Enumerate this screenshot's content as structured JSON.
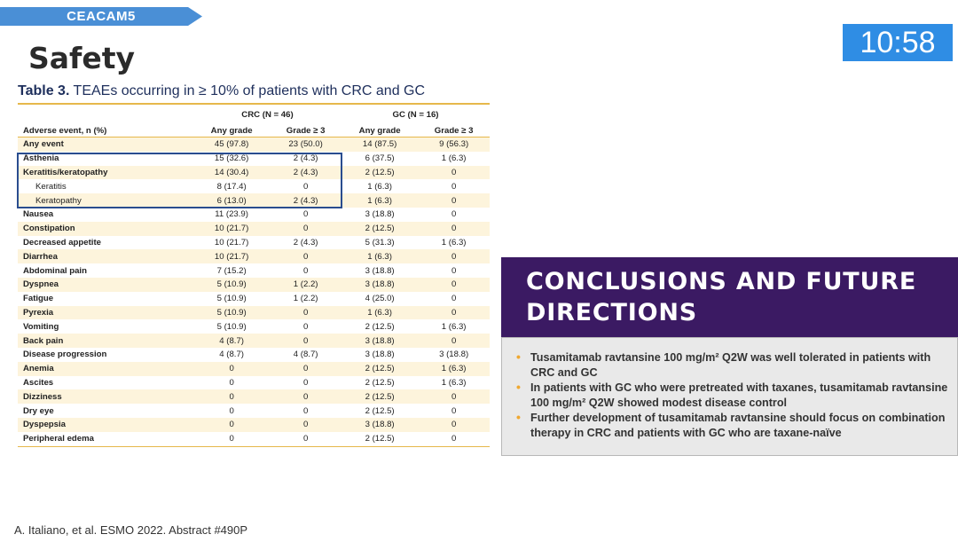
{
  "header": {
    "tag_label": "CEACAM5",
    "title": "Safety",
    "clock": "10:58"
  },
  "table": {
    "caption_bold": "Table 3.",
    "caption_rest": " TEAEs occurring in ≥ 10% of patients with CRC and GC",
    "group_crc": "CRC (N = 46)",
    "group_gc": "GC (N = 16)",
    "columns": [
      "Adverse event, n (%)",
      "Any grade",
      "Grade ≥ 3",
      "Any grade",
      "Grade ≥ 3"
    ],
    "rows": [
      [
        "Any event",
        "45 (97.8)",
        "23 (50.0)",
        "14 (87.5)",
        "9 (56.3)"
      ],
      [
        "Asthenia",
        "15 (32.6)",
        "2 (4.3)",
        "6 (37.5)",
        "1 (6.3)"
      ],
      [
        "Keratitis/keratopathy",
        "14 (30.4)",
        "2 (4.3)",
        "2 (12.5)",
        "0"
      ],
      [
        "Keratitis",
        "8 (17.4)",
        "0",
        "1 (6.3)",
        "0"
      ],
      [
        "Keratopathy",
        "6 (13.0)",
        "2 (4.3)",
        "1 (6.3)",
        "0"
      ],
      [
        "Nausea",
        "11 (23.9)",
        "0",
        "3 (18.8)",
        "0"
      ],
      [
        "Constipation",
        "10 (21.7)",
        "0",
        "2 (12.5)",
        "0"
      ],
      [
        "Decreased appetite",
        "10 (21.7)",
        "2 (4.3)",
        "5 (31.3)",
        "1 (6.3)"
      ],
      [
        "Diarrhea",
        "10 (21.7)",
        "0",
        "1 (6.3)",
        "0"
      ],
      [
        "Abdominal pain",
        "7 (15.2)",
        "0",
        "3 (18.8)",
        "0"
      ],
      [
        "Dyspnea",
        "5 (10.9)",
        "1 (2.2)",
        "3 (18.8)",
        "0"
      ],
      [
        "Fatigue",
        "5 (10.9)",
        "1 (2.2)",
        "4 (25.0)",
        "0"
      ],
      [
        "Pyrexia",
        "5 (10.9)",
        "0",
        "1 (6.3)",
        "0"
      ],
      [
        "Vomiting",
        "5 (10.9)",
        "0",
        "2 (12.5)",
        "1 (6.3)"
      ],
      [
        "Back pain",
        "4 (8.7)",
        "0",
        "3 (18.8)",
        "0"
      ],
      [
        "Disease progression",
        "4 (8.7)",
        "4 (8.7)",
        "3 (18.8)",
        "3 (18.8)"
      ],
      [
        "Anemia",
        "0",
        "0",
        "2 (12.5)",
        "1 (6.3)"
      ],
      [
        "Ascites",
        "0",
        "0",
        "2 (12.5)",
        "1 (6.3)"
      ],
      [
        "Dizziness",
        "0",
        "0",
        "2 (12.5)",
        "0"
      ],
      [
        "Dry eye",
        "0",
        "0",
        "2 (12.5)",
        "0"
      ],
      [
        "Dyspepsia",
        "0",
        "0",
        "3 (18.8)",
        "0"
      ],
      [
        "Peripheral edema",
        "0",
        "0",
        "2 (12.5)",
        "0"
      ]
    ]
  },
  "conclusions": {
    "heading_line1": "CONCLUSIONS AND FUTURE",
    "heading_line2": "DIRECTIONS",
    "bullets": [
      "Tusamitamab ravtansine 100 mg/m² Q2W was well tolerated in patients with CRC and GC",
      "In patients with GC who were pretreated with taxanes, tusamitamab ravtansine 100 mg/m² Q2W showed modest disease control",
      "Further development of tusamitamab ravtansine should focus on combination therapy in CRC and patients with GC who are taxane-naïve"
    ]
  },
  "footer": {
    "citation": "A. Italiano, et al. ESMO 2022. Abstract #490P"
  },
  "colors": {
    "tag_blue": "#4a8fd6",
    "clock_blue": "#2f8de4",
    "purple_header": "#3b1a63",
    "gold_rule": "#e6b84b",
    "highlight_box": "#2a4d8f"
  }
}
